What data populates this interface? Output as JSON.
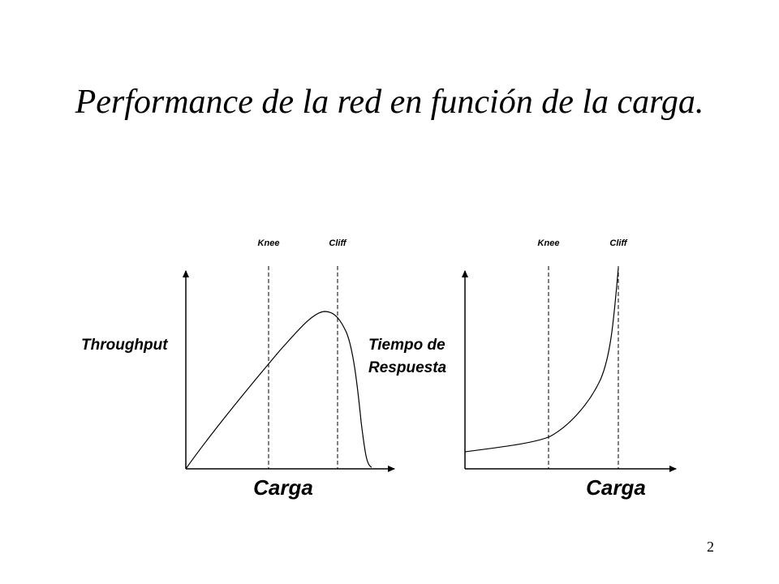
{
  "slide": {
    "title": "Performance de la red en función de la carga.",
    "page_number": "2"
  },
  "left_diagram": {
    "knee_label": "Knee",
    "cliff_label": "Cliff",
    "y_label": "Throughput",
    "x_label": "Carga"
  },
  "right_diagram": {
    "knee_label": "Knee",
    "cliff_label": "Cliff",
    "y_label_line1": "Tiempo de",
    "y_label_line2": "Respuesta",
    "x_label": "Carga"
  },
  "colors": {
    "ink": "#000000",
    "background": "#ffffff"
  }
}
